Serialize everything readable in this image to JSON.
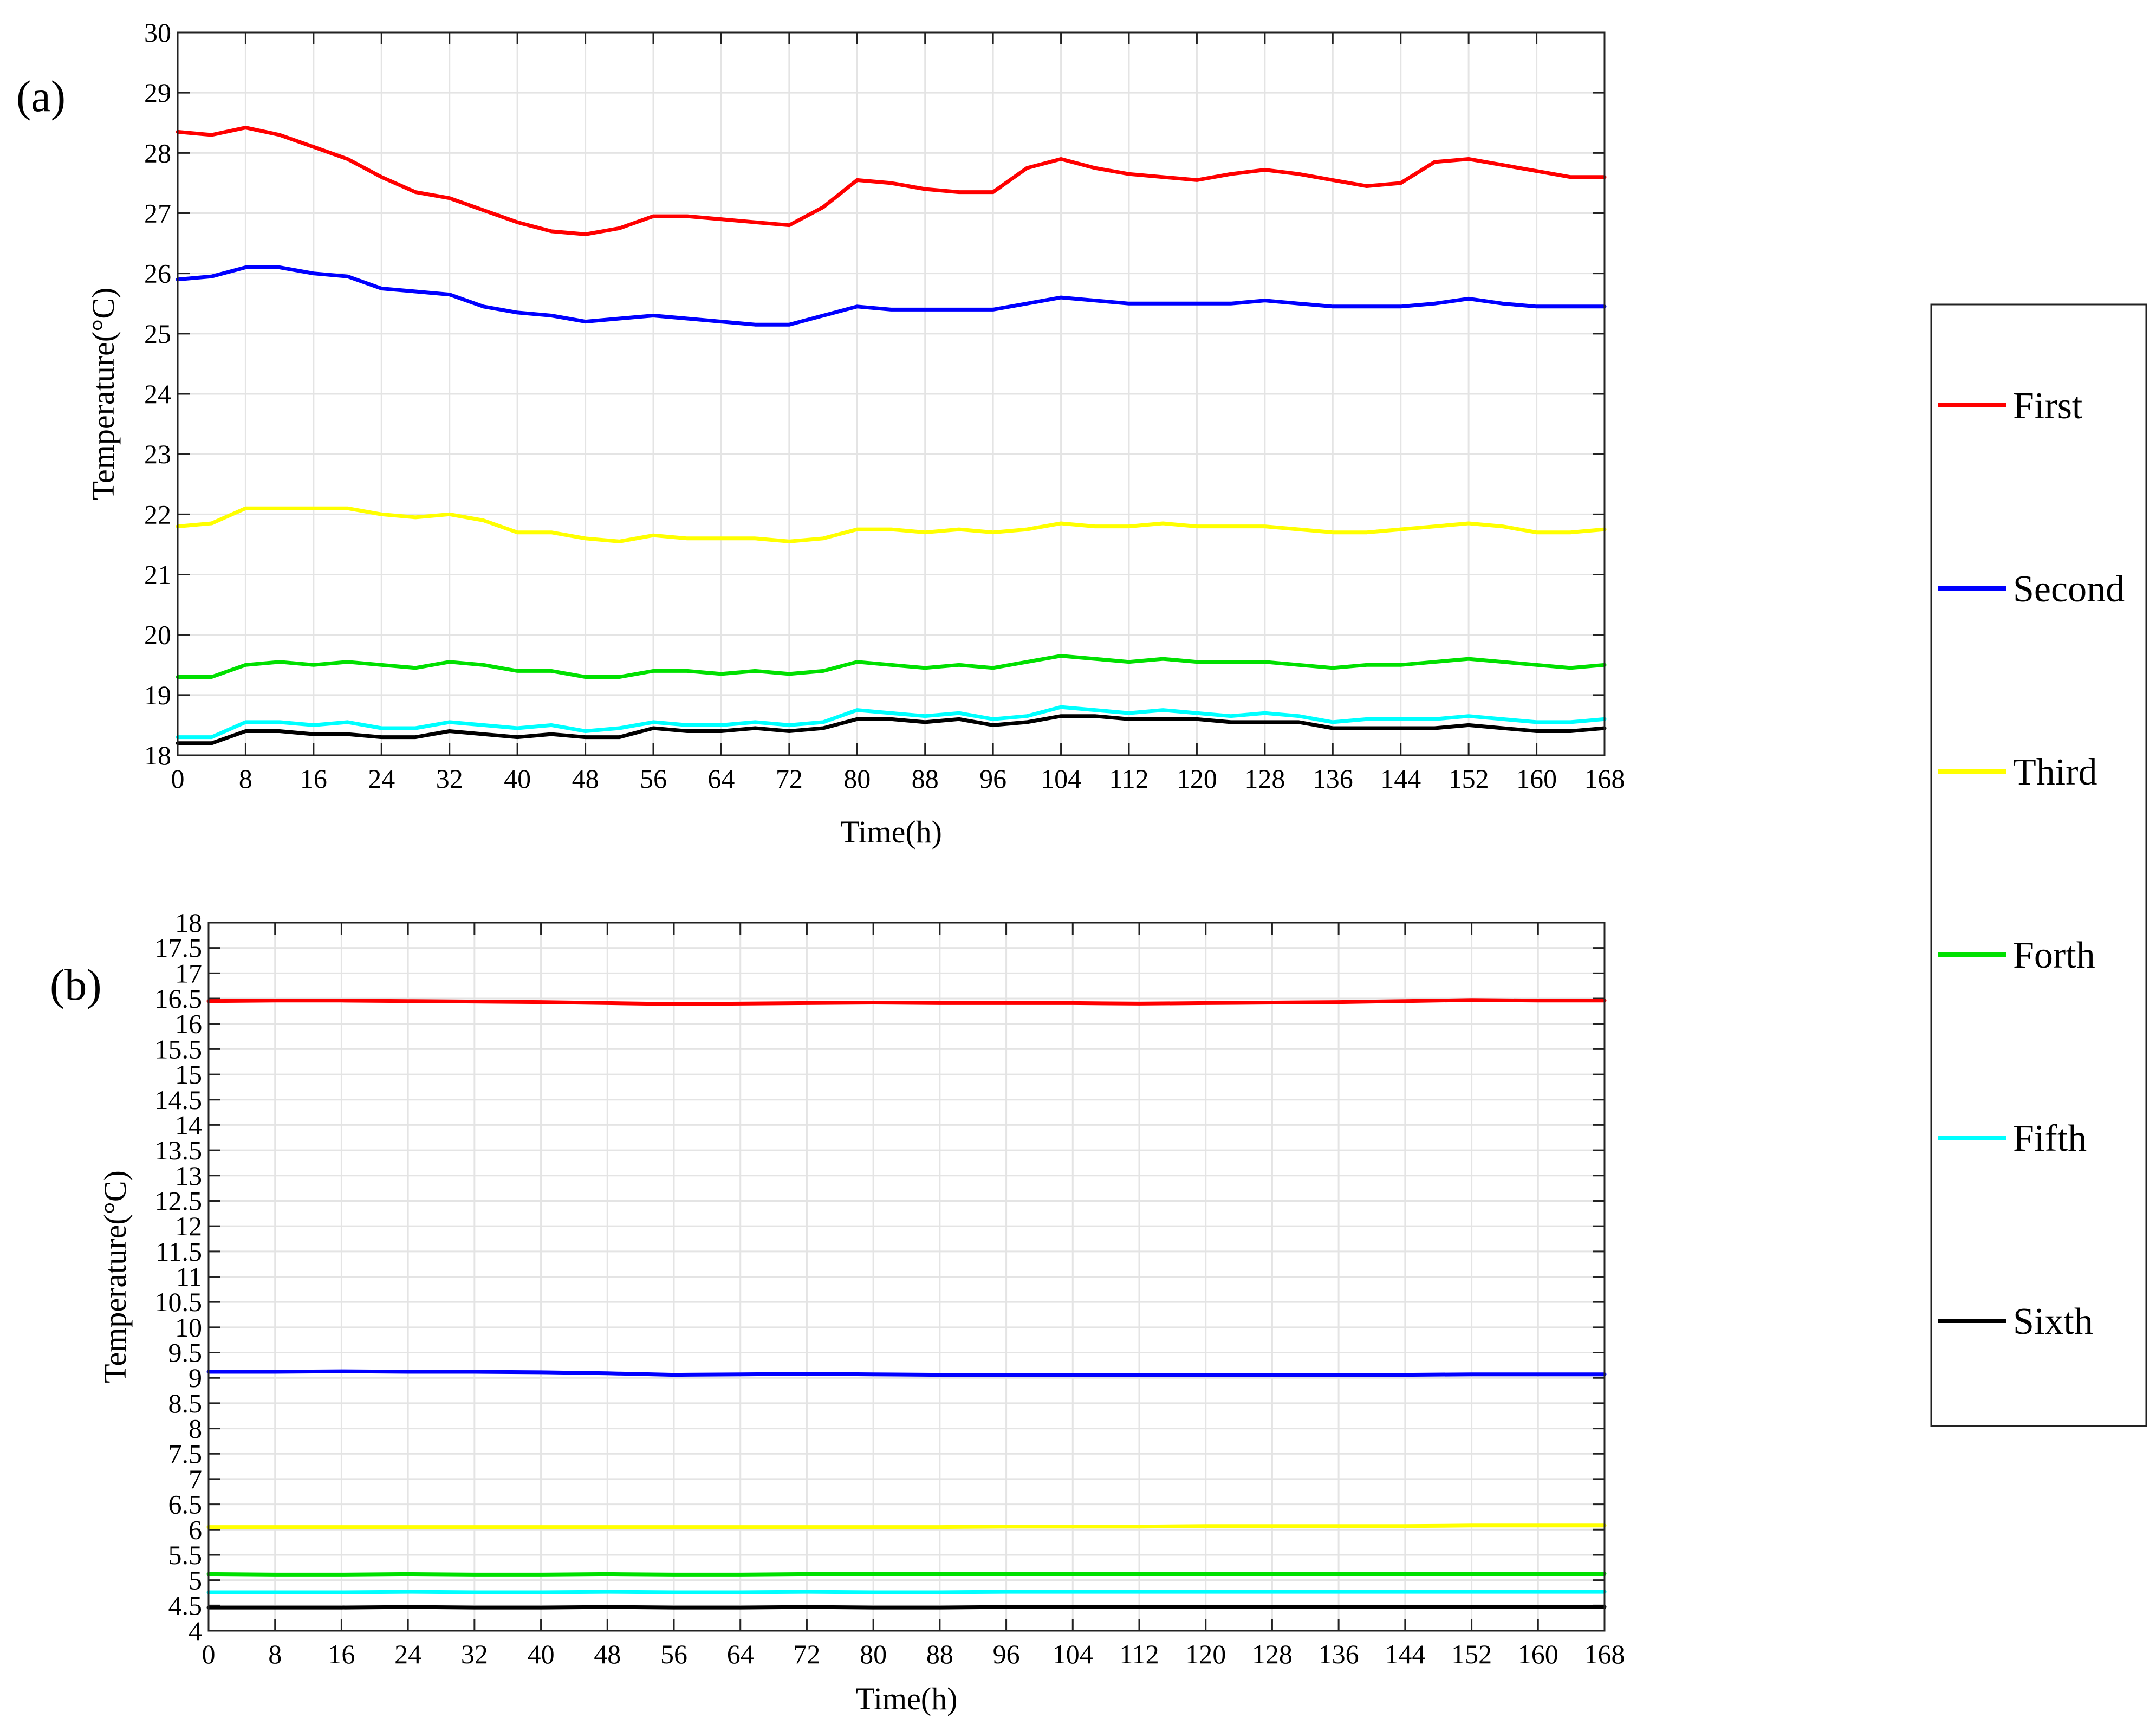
{
  "panels": [
    {
      "label": "(a)",
      "chart_data": {
        "type": "line",
        "xlabel": "Time(h)",
        "ylabel": "Temperature(°C)",
        "xlim": [
          0,
          168
        ],
        "ylim": [
          18,
          30
        ],
        "xticks": [
          0,
          8,
          16,
          24,
          32,
          40,
          48,
          56,
          64,
          72,
          80,
          88,
          96,
          104,
          112,
          120,
          128,
          136,
          144,
          152,
          160,
          168
        ],
        "yticks": [
          18,
          19,
          20,
          21,
          22,
          23,
          24,
          25,
          26,
          27,
          28,
          29,
          30
        ],
        "grid": true,
        "x": [
          0,
          4,
          8,
          12,
          16,
          20,
          24,
          28,
          32,
          36,
          40,
          44,
          48,
          52,
          56,
          60,
          64,
          68,
          72,
          76,
          80,
          84,
          88,
          92,
          96,
          100,
          104,
          108,
          112,
          116,
          120,
          124,
          128,
          132,
          136,
          140,
          144,
          148,
          152,
          156,
          160,
          164,
          168
        ],
        "series": [
          {
            "name": "First",
            "color": "#ff0000",
            "values": [
              28.35,
              28.3,
              28.42,
              28.3,
              28.1,
              27.9,
              27.6,
              27.35,
              27.25,
              27.05,
              26.85,
              26.7,
              26.65,
              26.75,
              26.95,
              26.95,
              26.9,
              26.85,
              26.8,
              27.1,
              27.55,
              27.5,
              27.4,
              27.35,
              27.35,
              27.75,
              27.9,
              27.75,
              27.65,
              27.6,
              27.55,
              27.65,
              27.72,
              27.65,
              27.55,
              27.45,
              27.5,
              27.85,
              27.9,
              27.8,
              27.7,
              27.6,
              27.6
            ]
          },
          {
            "name": "Second",
            "color": "#0000ff",
            "values": [
              25.9,
              25.95,
              26.1,
              26.1,
              26.0,
              25.95,
              25.75,
              25.7,
              25.65,
              25.45,
              25.35,
              25.3,
              25.2,
              25.25,
              25.3,
              25.25,
              25.2,
              25.15,
              25.15,
              25.3,
              25.45,
              25.4,
              25.4,
              25.4,
              25.4,
              25.5,
              25.6,
              25.55,
              25.5,
              25.5,
              25.5,
              25.5,
              25.55,
              25.5,
              25.45,
              25.45,
              25.45,
              25.5,
              25.58,
              25.5,
              25.45,
              25.45,
              25.45
            ]
          },
          {
            "name": "Third",
            "color": "#ffff00",
            "values": [
              21.8,
              21.85,
              22.1,
              22.1,
              22.1,
              22.1,
              22.0,
              21.95,
              22.0,
              21.9,
              21.7,
              21.7,
              21.6,
              21.55,
              21.65,
              21.6,
              21.6,
              21.6,
              21.55,
              21.6,
              21.75,
              21.75,
              21.7,
              21.75,
              21.7,
              21.75,
              21.85,
              21.8,
              21.8,
              21.85,
              21.8,
              21.8,
              21.8,
              21.75,
              21.7,
              21.7,
              21.75,
              21.8,
              21.85,
              21.8,
              21.7,
              21.7,
              21.75
            ]
          },
          {
            "name": "Forth",
            "color": "#00e000",
            "values": [
              19.3,
              19.3,
              19.5,
              19.55,
              19.5,
              19.55,
              19.5,
              19.45,
              19.55,
              19.5,
              19.4,
              19.4,
              19.3,
              19.3,
              19.4,
              19.4,
              19.35,
              19.4,
              19.35,
              19.4,
              19.55,
              19.5,
              19.45,
              19.5,
              19.45,
              19.55,
              19.65,
              19.6,
              19.55,
              19.6,
              19.55,
              19.55,
              19.55,
              19.5,
              19.45,
              19.5,
              19.5,
              19.55,
              19.6,
              19.55,
              19.5,
              19.45,
              19.5
            ]
          },
          {
            "name": "Fifth",
            "color": "#00ffff",
            "values": [
              18.3,
              18.3,
              18.55,
              18.55,
              18.5,
              18.55,
              18.45,
              18.45,
              18.55,
              18.5,
              18.45,
              18.5,
              18.4,
              18.45,
              18.55,
              18.5,
              18.5,
              18.55,
              18.5,
              18.55,
              18.75,
              18.7,
              18.65,
              18.7,
              18.6,
              18.65,
              18.8,
              18.75,
              18.7,
              18.75,
              18.7,
              18.65,
              18.7,
              18.65,
              18.55,
              18.6,
              18.6,
              18.6,
              18.65,
              18.6,
              18.55,
              18.55,
              18.6
            ]
          },
          {
            "name": "Sixth",
            "color": "#000000",
            "values": [
              18.2,
              18.2,
              18.4,
              18.4,
              18.35,
              18.35,
              18.3,
              18.3,
              18.4,
              18.35,
              18.3,
              18.35,
              18.3,
              18.3,
              18.45,
              18.4,
              18.4,
              18.45,
              18.4,
              18.45,
              18.6,
              18.6,
              18.55,
              18.6,
              18.5,
              18.55,
              18.65,
              18.65,
              18.6,
              18.6,
              18.6,
              18.55,
              18.55,
              18.55,
              18.45,
              18.45,
              18.45,
              18.45,
              18.5,
              18.45,
              18.4,
              18.4,
              18.45
            ]
          }
        ]
      }
    },
    {
      "label": "(b)",
      "chart_data": {
        "type": "line",
        "xlabel": "Time(h)",
        "ylabel": "Temperature(°C)",
        "xlim": [
          0,
          168
        ],
        "ylim": [
          4,
          18
        ],
        "xticks": [
          0,
          8,
          16,
          24,
          32,
          40,
          48,
          56,
          64,
          72,
          80,
          88,
          96,
          104,
          112,
          120,
          128,
          136,
          144,
          152,
          160,
          168
        ],
        "yticks": [
          4,
          4.5,
          5,
          5.5,
          6,
          6.5,
          7,
          7.5,
          8,
          8.5,
          9,
          9.5,
          10,
          10.5,
          11,
          11.5,
          12,
          12.5,
          13,
          13.5,
          14,
          14.5,
          15,
          15.5,
          16,
          16.5,
          17,
          17.5,
          18
        ],
        "grid": true,
        "x": [
          0,
          8,
          16,
          24,
          32,
          40,
          48,
          56,
          64,
          72,
          80,
          88,
          96,
          104,
          112,
          120,
          128,
          136,
          144,
          152,
          160,
          168
        ],
        "series": [
          {
            "name": "First",
            "color": "#ff0000",
            "values": [
              16.45,
              16.46,
              16.46,
              16.45,
              16.44,
              16.43,
              16.41,
              16.39,
              16.4,
              16.41,
              16.42,
              16.41,
              16.41,
              16.41,
              16.4,
              16.41,
              16.42,
              16.43,
              16.45,
              16.47,
              16.46,
              16.46
            ]
          },
          {
            "name": "Second",
            "color": "#0000ff",
            "values": [
              9.12,
              9.12,
              9.13,
              9.12,
              9.12,
              9.11,
              9.09,
              9.06,
              9.07,
              9.08,
              9.07,
              9.06,
              9.06,
              9.06,
              9.06,
              9.05,
              9.06,
              9.06,
              9.06,
              9.07,
              9.07,
              9.07
            ]
          },
          {
            "name": "Third",
            "color": "#ffff00",
            "values": [
              6.05,
              6.05,
              6.05,
              6.05,
              6.05,
              6.05,
              6.05,
              6.05,
              6.05,
              6.05,
              6.05,
              6.05,
              6.06,
              6.06,
              6.06,
              6.07,
              6.07,
              6.07,
              6.07,
              6.08,
              6.08,
              6.08
            ]
          },
          {
            "name": "Forth",
            "color": "#00e000",
            "values": [
              5.12,
              5.11,
              5.11,
              5.12,
              5.11,
              5.11,
              5.12,
              5.11,
              5.11,
              5.12,
              5.12,
              5.12,
              5.13,
              5.13,
              5.12,
              5.13,
              5.13,
              5.13,
              5.13,
              5.13,
              5.13,
              5.13
            ]
          },
          {
            "name": "Fifth",
            "color": "#00ffff",
            "values": [
              4.76,
              4.76,
              4.76,
              4.77,
              4.76,
              4.76,
              4.77,
              4.76,
              4.76,
              4.77,
              4.76,
              4.76,
              4.77,
              4.77,
              4.77,
              4.77,
              4.77,
              4.77,
              4.77,
              4.77,
              4.77,
              4.77
            ]
          },
          {
            "name": "Sixth",
            "color": "#000000",
            "values": [
              4.46,
              4.46,
              4.46,
              4.47,
              4.46,
              4.46,
              4.47,
              4.46,
              4.46,
              4.47,
              4.46,
              4.46,
              4.47,
              4.47,
              4.47,
              4.47,
              4.47,
              4.47,
              4.47,
              4.47,
              4.47,
              4.47
            ]
          }
        ]
      }
    }
  ],
  "legend": {
    "placement": "right",
    "entries": [
      {
        "name": "First",
        "color": "#ff0000"
      },
      {
        "name": "Second",
        "color": "#0000ff"
      },
      {
        "name": "Third",
        "color": "#ffff00"
      },
      {
        "name": "Forth",
        "color": "#00e000"
      },
      {
        "name": "Fifth",
        "color": "#00ffff"
      },
      {
        "name": "Sixth",
        "color": "#000000"
      }
    ]
  }
}
